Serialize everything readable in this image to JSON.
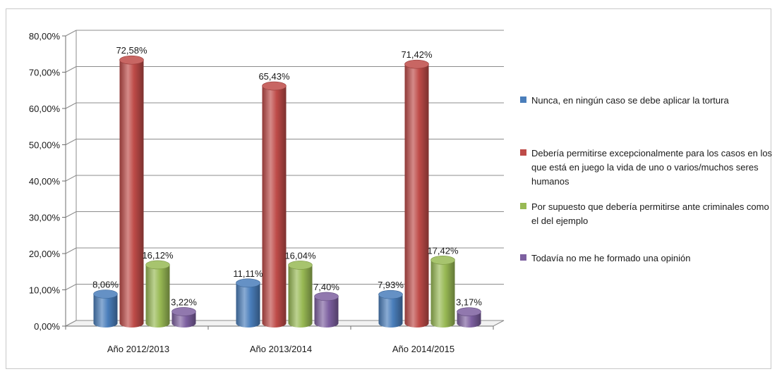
{
  "chart_data": {
    "type": "bar",
    "categories": [
      "Año 2012/2013",
      "Año 2013/2014",
      "Año 2014/2015"
    ],
    "series": [
      {
        "name": "Nunca, en ningún caso se debe aplicar la tortura",
        "color": "#4a7ebb",
        "values": [
          8.06,
          11.11,
          7.93
        ],
        "labels": [
          "8,06%",
          "11,11%",
          "7,93%"
        ]
      },
      {
        "name": "Debería permitirse excepcionalmente para los casos en los que está en juego la vida de uno o varios/muchos seres humanos",
        "color": "#be4b48",
        "values": [
          72.58,
          65.43,
          71.42
        ],
        "labels": [
          "72,58%",
          "65,43%",
          "71,42%"
        ]
      },
      {
        "name": "Por supuesto que debería permitirse ante criminales como el del ejemplo",
        "color": "#98b954",
        "values": [
          16.12,
          16.04,
          17.42
        ],
        "labels": [
          "16,12%",
          "16,04%",
          "17,42%"
        ]
      },
      {
        "name": "Todavía no me he formado una opinión",
        "color": "#7d60a0",
        "values": [
          3.22,
          7.4,
          3.17
        ],
        "labels": [
          "3,22%",
          "7,40%",
          "3,17%"
        ]
      }
    ],
    "y_ticks": [
      "0,00%",
      "10,00%",
      "20,00%",
      "30,00%",
      "40,00%",
      "50,00%",
      "60,00%",
      "70,00%",
      "80,00%"
    ],
    "ylim": [
      0,
      80
    ],
    "grid": true,
    "legend_position": "right",
    "title": "",
    "xlabel": "",
    "ylabel": ""
  }
}
